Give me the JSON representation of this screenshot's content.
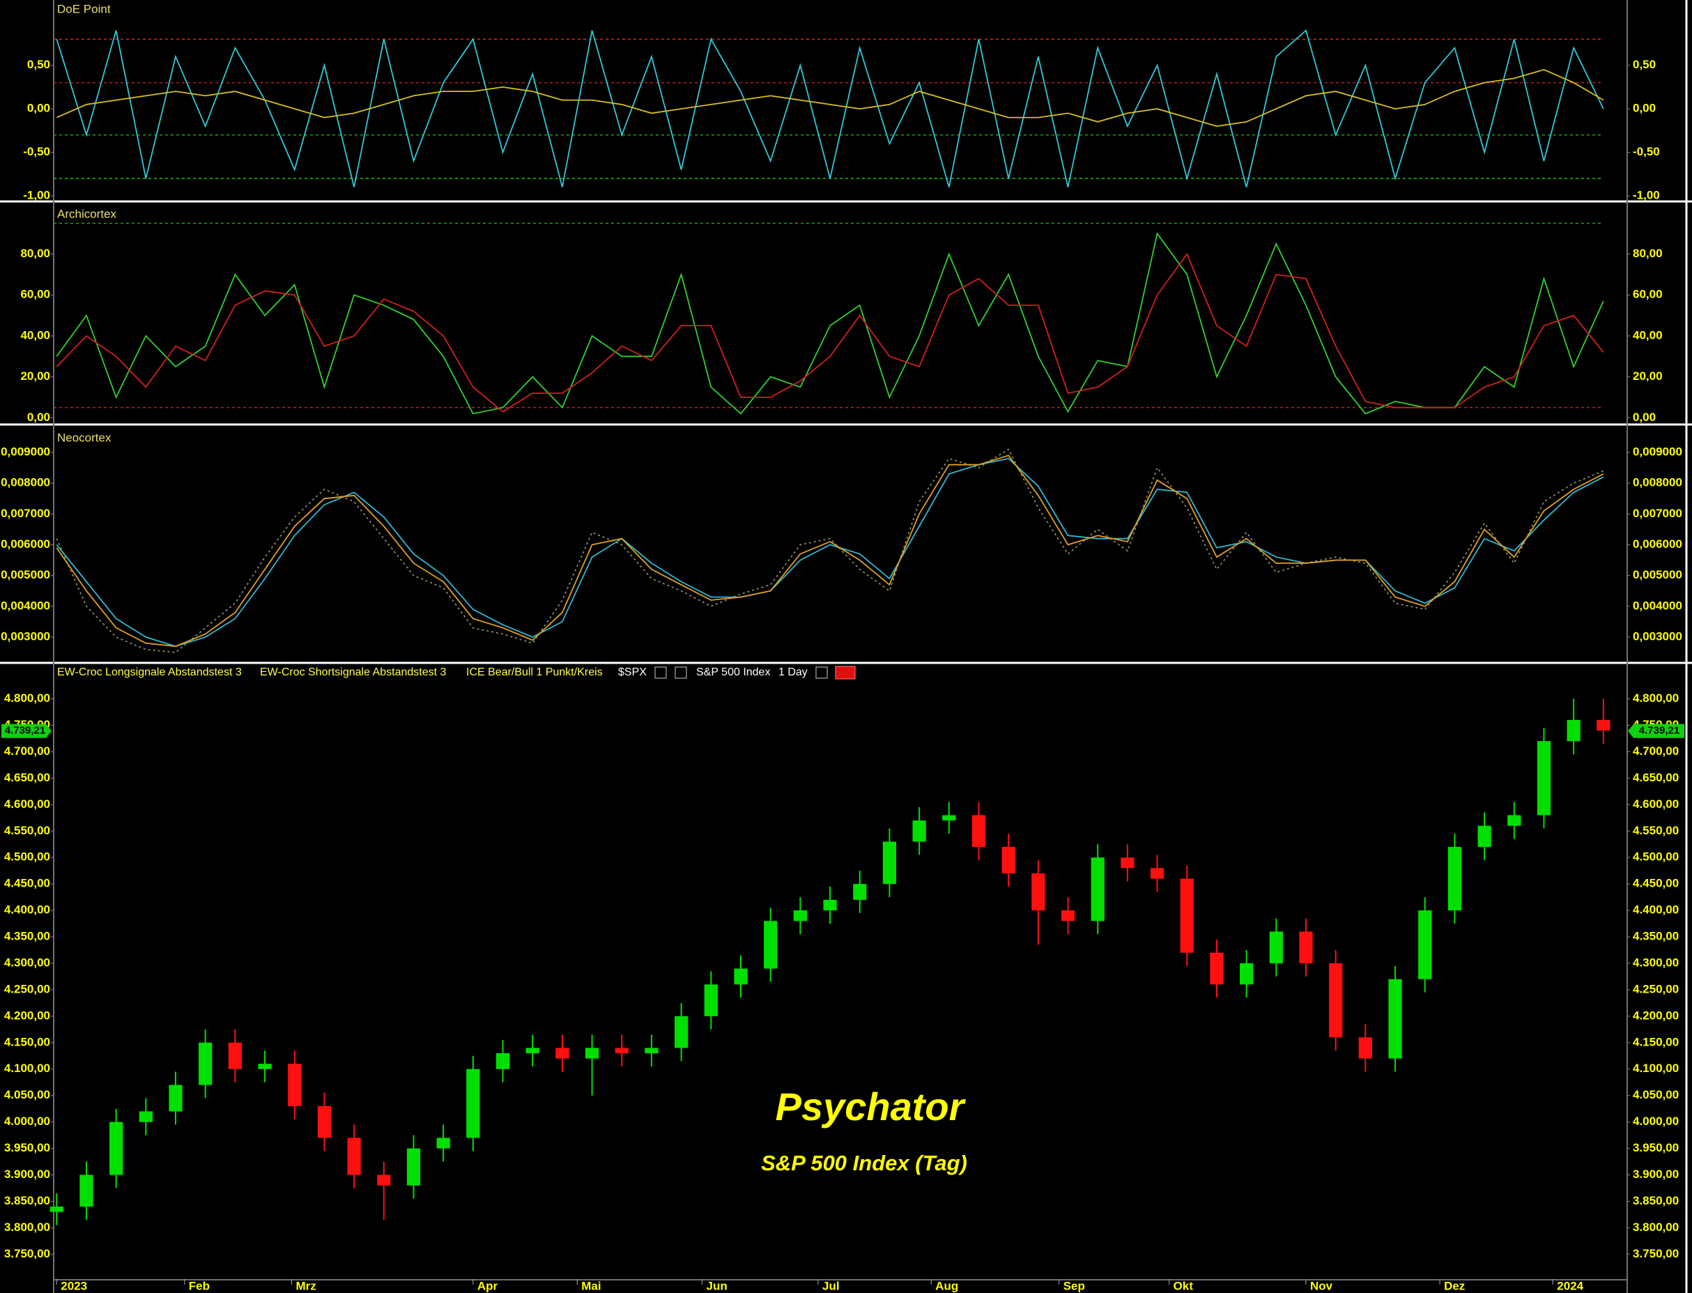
{
  "chart_data": [
    {
      "type": "line",
      "title": "DoE Point",
      "x": [
        0,
        1,
        2,
        3,
        4,
        5,
        6,
        7,
        8,
        9,
        10,
        11,
        12,
        13,
        14,
        15,
        16,
        17,
        18,
        19,
        20,
        21,
        22,
        23,
        24,
        25,
        26,
        27,
        28,
        29,
        30,
        31,
        32,
        33,
        34,
        35,
        36,
        37,
        38,
        39,
        40,
        41,
        42,
        43,
        44,
        45,
        46,
        47,
        48,
        49,
        50,
        51,
        52
      ],
      "xlim": [
        -0.1,
        52.8
      ],
      "ylim": [
        -1.04,
        1.25
      ],
      "yticks": [
        {
          "value": -1,
          "label": "-1,00"
        },
        {
          "value": -0.5,
          "label": "-0,50"
        },
        {
          "value": 0,
          "label": "0,00"
        },
        {
          "value": 0.5,
          "label": "0,50"
        }
      ],
      "reference_lines": [
        {
          "value": 0.8,
          "color": "#e02020"
        },
        {
          "value": 0.3,
          "color": "#c02020"
        },
        {
          "value": -0.3,
          "color": "#20a020"
        },
        {
          "value": -0.8,
          "color": "#20c020"
        }
      ],
      "series": [
        {
          "color": "#30c8d8",
          "values": [
            0.8,
            -0.3,
            0.9,
            -0.8,
            0.6,
            -0.2,
            0.7,
            0.1,
            -0.7,
            0.5,
            -0.9,
            0.8,
            -0.6,
            0.3,
            0.8,
            -0.5,
            0.4,
            -0.9,
            0.9,
            -0.3,
            0.6,
            -0.7,
            0.8,
            0.2,
            -0.6,
            0.5,
            -0.8,
            0.7,
            -0.4,
            0.3,
            -0.9,
            0.8,
            -0.8,
            0.6,
            -0.9,
            0.7,
            -0.2,
            0.5,
            -0.8,
            0.4,
            -0.9,
            0.6,
            0.9,
            -0.3,
            0.5,
            -0.8,
            0.3,
            0.7,
            -0.5,
            0.8,
            -0.6,
            0.7,
            0.0
          ]
        },
        {
          "color": "#d8c020",
          "values": [
            -0.1,
            0.05,
            0.1,
            0.15,
            0.2,
            0.15,
            0.2,
            0.1,
            0.0,
            -0.1,
            -0.05,
            0.05,
            0.15,
            0.2,
            0.2,
            0.25,
            0.2,
            0.1,
            0.1,
            0.05,
            -0.05,
            0.0,
            0.05,
            0.1,
            0.15,
            0.1,
            0.05,
            0.0,
            0.05,
            0.2,
            0.1,
            0.0,
            -0.1,
            -0.1,
            -0.05,
            -0.15,
            -0.05,
            0.0,
            -0.1,
            -0.2,
            -0.15,
            0.0,
            0.15,
            0.2,
            0.1,
            0.0,
            0.05,
            0.2,
            0.3,
            0.35,
            0.45,
            0.3,
            0.1
          ]
        }
      ]
    },
    {
      "type": "line",
      "title": "Archicortex",
      "x": [
        0,
        1,
        2,
        3,
        4,
        5,
        6,
        7,
        8,
        9,
        10,
        11,
        12,
        13,
        14,
        15,
        16,
        17,
        18,
        19,
        20,
        21,
        22,
        23,
        24,
        25,
        26,
        27,
        28,
        29,
        30,
        31,
        32,
        33,
        34,
        35,
        36,
        37,
        38,
        39,
        40,
        41,
        42,
        43,
        44,
        45,
        46,
        47,
        48,
        49,
        50,
        51,
        52
      ],
      "xlim": [
        -0.1,
        52.8
      ],
      "ylim": [
        -2.6,
        104
      ],
      "yticks": [
        {
          "value": 0,
          "label": "0,00"
        },
        {
          "value": 20,
          "label": "20,00"
        },
        {
          "value": 40,
          "label": "40,00"
        },
        {
          "value": 60,
          "label": "60,00"
        },
        {
          "value": 80,
          "label": "80,00"
        }
      ],
      "reference_lines": [
        {
          "value": 95,
          "color": "#20a020"
        },
        {
          "value": 5,
          "color": "#c02020"
        }
      ],
      "series": [
        {
          "color": "#30d030",
          "values": [
            30,
            50,
            10,
            40,
            25,
            35,
            70,
            50,
            65,
            15,
            60,
            55,
            48,
            30,
            2,
            5,
            20,
            5,
            40,
            30,
            30,
            70,
            15,
            2,
            20,
            15,
            45,
            55,
            10,
            40,
            80,
            45,
            70,
            30,
            3,
            28,
            25,
            90,
            70,
            20,
            50,
            85,
            55,
            20,
            2,
            8,
            5,
            5,
            25,
            15,
            68,
            25,
            57
          ]
        },
        {
          "color": "#d02020",
          "values": [
            25,
            40,
            30,
            15,
            35,
            28,
            55,
            62,
            60,
            35,
            40,
            58,
            52,
            40,
            15,
            3,
            12,
            12,
            22,
            35,
            28,
            45,
            45,
            10,
            10,
            18,
            30,
            50,
            30,
            25,
            60,
            68,
            55,
            55,
            12,
            15,
            25,
            60,
            80,
            45,
            35,
            70,
            68,
            35,
            8,
            5,
            5,
            5,
            15,
            20,
            45,
            50,
            32
          ]
        }
      ]
    },
    {
      "type": "line",
      "title": "Neocortex",
      "x": [
        0,
        1,
        2,
        3,
        4,
        5,
        6,
        7,
        8,
        9,
        10,
        11,
        12,
        13,
        14,
        15,
        16,
        17,
        18,
        19,
        20,
        21,
        22,
        23,
        24,
        25,
        26,
        27,
        28,
        29,
        30,
        31,
        32,
        33,
        34,
        35,
        36,
        37,
        38,
        39,
        40,
        41,
        42,
        43,
        44,
        45,
        46,
        47,
        48,
        49,
        50,
        51,
        52
      ],
      "xlim": [
        -0.1,
        52.8
      ],
      "ylim": [
        0.00223,
        0.00977
      ],
      "yticks": [
        {
          "value": 0.003,
          "label": "0,003000"
        },
        {
          "value": 0.004,
          "label": "0,004000"
        },
        {
          "value": 0.005,
          "label": "0,005000"
        },
        {
          "value": 0.006,
          "label": "0,006000"
        },
        {
          "value": 0.007,
          "label": "0,007000"
        },
        {
          "value": 0.008,
          "label": "0,008000"
        },
        {
          "value": 0.009,
          "label": "0,009000"
        }
      ],
      "series": [
        {
          "color": "#8a8a60",
          "dashed": true,
          "values": [
            0.0062,
            0.004,
            0.003,
            0.0026,
            0.0025,
            0.0033,
            0.0041,
            0.0056,
            0.0069,
            0.0078,
            0.0074,
            0.0062,
            0.005,
            0.0046,
            0.0033,
            0.0031,
            0.0028,
            0.0042,
            0.0064,
            0.006,
            0.0049,
            0.0045,
            0.004,
            0.0044,
            0.0047,
            0.006,
            0.0062,
            0.0052,
            0.0045,
            0.0074,
            0.0088,
            0.0085,
            0.0091,
            0.0072,
            0.0057,
            0.0065,
            0.0058,
            0.0085,
            0.0072,
            0.0052,
            0.0064,
            0.0051,
            0.0054,
            0.0056,
            0.0054,
            0.0041,
            0.0039,
            0.0051,
            0.0067,
            0.0054,
            0.0074,
            0.008,
            0.0084
          ]
        },
        {
          "color": "#30b8d0",
          "values": [
            0.006,
            0.0048,
            0.0036,
            0.003,
            0.0027,
            0.003,
            0.0036,
            0.0049,
            0.0063,
            0.0073,
            0.0077,
            0.0069,
            0.0057,
            0.005,
            0.0039,
            0.0034,
            0.003,
            0.0035,
            0.0056,
            0.0062,
            0.0054,
            0.0048,
            0.0043,
            0.0043,
            0.0045,
            0.0055,
            0.006,
            0.0057,
            0.0049,
            0.0066,
            0.0083,
            0.0086,
            0.0088,
            0.0079,
            0.0063,
            0.0062,
            0.0062,
            0.0078,
            0.0077,
            0.0059,
            0.0061,
            0.0056,
            0.0054,
            0.0055,
            0.0055,
            0.0045,
            0.0041,
            0.0046,
            0.0062,
            0.0058,
            0.0068,
            0.0077,
            0.0082
          ]
        },
        {
          "color": "#e0a020",
          "values": [
            0.0059,
            0.0045,
            0.0033,
            0.0028,
            0.0027,
            0.0031,
            0.0038,
            0.0052,
            0.0066,
            0.0075,
            0.0076,
            0.0066,
            0.0054,
            0.0048,
            0.0036,
            0.0033,
            0.0029,
            0.0038,
            0.006,
            0.0062,
            0.0052,
            0.0047,
            0.0042,
            0.0043,
            0.0045,
            0.0057,
            0.0061,
            0.0055,
            0.0047,
            0.007,
            0.0086,
            0.0086,
            0.0089,
            0.0076,
            0.006,
            0.0063,
            0.0061,
            0.0081,
            0.0075,
            0.0056,
            0.0062,
            0.0054,
            0.0054,
            0.0055,
            0.0055,
            0.0043,
            0.004,
            0.0048,
            0.0065,
            0.0056,
            0.0071,
            0.0078,
            0.0083
          ]
        }
      ]
    },
    {
      "type": "candlestick",
      "legend": [
        "EW-Croc Longsignale Abstandstest 3",
        "EW-Croc Shortsignale Abstandstest 3",
        "ICE Bear/Bull 1 Punkt/Kreis"
      ],
      "symbol": "$SPX",
      "instrument": "S&P 500 Index",
      "interval": "1 Day",
      "watermark": "Psychator",
      "subtitle": "S&P 500 Index (Tag)",
      "up_color": "#00e000",
      "down_color": "#ff1010",
      "x": [
        0,
        1,
        2,
        3,
        4,
        5,
        6,
        7,
        8,
        9,
        10,
        11,
        12,
        13,
        14,
        15,
        16,
        17,
        18,
        19,
        20,
        21,
        22,
        23,
        24,
        25,
        26,
        27,
        28,
        29,
        30,
        31,
        32,
        33,
        34,
        35,
        36,
        37,
        38,
        39,
        40,
        41,
        42,
        43,
        44,
        45,
        46,
        47,
        48,
        49,
        50,
        51,
        52
      ],
      "open": [
        3830,
        3840,
        3900,
        4000,
        4020,
        4070,
        4150,
        4100,
        4110,
        4030,
        3970,
        3900,
        3880,
        3950,
        3970,
        4100,
        4130,
        4140,
        4120,
        4140,
        4130,
        4140,
        4200,
        4260,
        4290,
        4380,
        4400,
        4420,
        4450,
        4530,
        4570,
        4580,
        4520,
        4470,
        4400,
        4380,
        4500,
        4480,
        4460,
        4320,
        4260,
        4300,
        4360,
        4300,
        4160,
        4120,
        4270,
        4400,
        4520,
        4560,
        4580,
        4720,
        4760
      ],
      "high": [
        3865,
        3925,
        4025,
        4045,
        4095,
        4175,
        4175,
        4135,
        4135,
        4055,
        3995,
        3925,
        3975,
        3995,
        4125,
        4155,
        4165,
        4165,
        4165,
        4165,
        4165,
        4225,
        4285,
        4315,
        4405,
        4425,
        4445,
        4475,
        4555,
        4595,
        4605,
        4605,
        4545,
        4495,
        4425,
        4525,
        4525,
        4505,
        4485,
        4345,
        4325,
        4385,
        4385,
        4325,
        4185,
        4295,
        4425,
        4545,
        4585,
        4605,
        4745,
        4800,
        4800
      ],
      "low": [
        3805,
        3815,
        3875,
        3975,
        3995,
        4045,
        4075,
        4075,
        4005,
        3945,
        3875,
        3815,
        3855,
        3925,
        3945,
        4075,
        4105,
        4095,
        4050,
        4105,
        4105,
        4115,
        4175,
        4235,
        4265,
        4355,
        4375,
        4395,
        4425,
        4505,
        4545,
        4495,
        4445,
        4335,
        4355,
        4355,
        4455,
        4435,
        4295,
        4235,
        4235,
        4275,
        4275,
        4135,
        4095,
        4095,
        4245,
        4375,
        4495,
        4535,
        4555,
        4695,
        4715
      ],
      "close": [
        3840,
        3900,
        4000,
        4020,
        4070,
        4150,
        4100,
        4110,
        4030,
        3970,
        3900,
        3880,
        3950,
        3970,
        4100,
        4130,
        4140,
        4120,
        4140,
        4130,
        4140,
        4200,
        4260,
        4290,
        4380,
        4400,
        4420,
        4450,
        4530,
        4570,
        4580,
        4520,
        4470,
        4400,
        4380,
        4500,
        4480,
        4460,
        4320,
        4260,
        4300,
        4360,
        4300,
        4160,
        4120,
        4270,
        4400,
        4520,
        4560,
        4580,
        4720,
        4760,
        4740
      ],
      "last_price": {
        "value": 4739.21,
        "label": "4.739,21"
      },
      "xlim": [
        -0.1,
        52.8
      ],
      "ylim": [
        3703,
        4835
      ],
      "xticks": [
        {
          "value": 0,
          "label": "2023"
        },
        {
          "value": 4.3,
          "label": "Feb"
        },
        {
          "value": 7.9,
          "label": "Mrz"
        },
        {
          "value": 14.0,
          "label": "Apr"
        },
        {
          "value": 17.5,
          "label": "Mai"
        },
        {
          "value": 21.7,
          "label": "Jun"
        },
        {
          "value": 25.6,
          "label": "Jul"
        },
        {
          "value": 29.4,
          "label": "Aug"
        },
        {
          "value": 33.7,
          "label": "Sep"
        },
        {
          "value": 37.4,
          "label": "Okt"
        },
        {
          "value": 42.0,
          "label": "Nov"
        },
        {
          "value": 46.5,
          "label": "Dez"
        },
        {
          "value": 50.3,
          "label": "2024"
        }
      ],
      "yticks": [
        {
          "value": 3750,
          "label": "3.750,00"
        },
        {
          "value": 3800,
          "label": "3.800,00"
        },
        {
          "value": 3850,
          "label": "3.850,00"
        },
        {
          "value": 3900,
          "label": "3.900,00"
        },
        {
          "value": 3950,
          "label": "3.950,00"
        },
        {
          "value": 4000,
          "label": "4.000,00"
        },
        {
          "value": 4050,
          "label": "4.050,00"
        },
        {
          "value": 4100,
          "label": "4.100,00"
        },
        {
          "value": 4150,
          "label": "4.150,00"
        },
        {
          "value": 4200,
          "label": "4.200,00"
        },
        {
          "value": 4250,
          "label": "4.250,00"
        },
        {
          "value": 4300,
          "label": "4.300,00"
        },
        {
          "value": 4350,
          "label": "4.350,00"
        },
        {
          "value": 4400,
          "label": "4.400,00"
        },
        {
          "value": 4450,
          "label": "4.450,00"
        },
        {
          "value": 4500,
          "label": "4.500,00"
        },
        {
          "value": 4550,
          "label": "4.550,00"
        },
        {
          "value": 4600,
          "label": "4.600,00"
        },
        {
          "value": 4650,
          "label": "4.650,00"
        },
        {
          "value": 4700,
          "label": "4.700,00"
        },
        {
          "value": 4750,
          "label": "4.750,00"
        },
        {
          "value": 4800,
          "label": "4.800,00"
        }
      ]
    }
  ]
}
